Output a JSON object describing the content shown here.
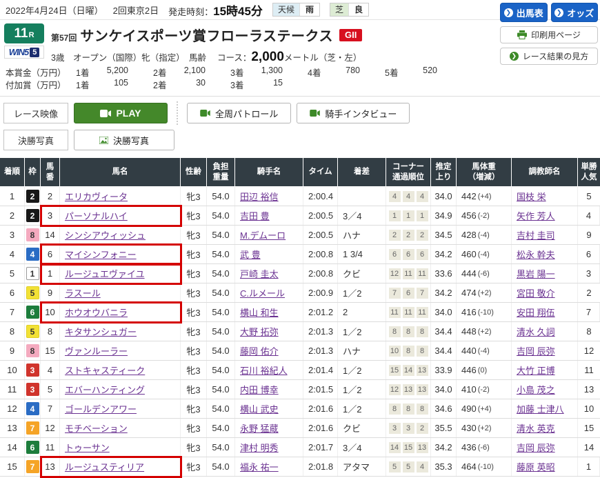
{
  "topbar": {
    "date": "2022年4月24日（日曜）",
    "meeting": "2回東京2日",
    "start_label": "発走時刻：",
    "start_time": "15時45分",
    "weather_label": "天候",
    "weather_value": "雨",
    "turf_label": "芝",
    "turf_value": "良"
  },
  "actions": {
    "entry_table": "出馬表",
    "odds": "オッズ",
    "print": "印刷用ページ",
    "how_to_read": "レース結果の見方"
  },
  "race": {
    "number": "11",
    "r_suffix": "R",
    "win5_text": "WIN5",
    "win5_num": "5",
    "edition": "第57回",
    "title": "サンケイスポーツ賞フローラステークス",
    "grade": "GII",
    "conditions": "3歳　オープン（国際）牝（指定）　馬齢",
    "course_label": "コース：",
    "distance": "2,000",
    "course_detail": "メートル（芝・左）"
  },
  "prize": {
    "main_label": "本賞金（万円）",
    "added_label": "付加賞（万円）",
    "main": [
      {
        "place": "1着",
        "amount": "5,200"
      },
      {
        "place": "2着",
        "amount": "2,100"
      },
      {
        "place": "3着",
        "amount": "1,300"
      },
      {
        "place": "4着",
        "amount": "780"
      },
      {
        "place": "5着",
        "amount": "520"
      }
    ],
    "added": [
      {
        "place": "1着",
        "amount": "105"
      },
      {
        "place": "2着",
        "amount": "30"
      },
      {
        "place": "3着",
        "amount": "15"
      }
    ]
  },
  "media": {
    "video_label": "レース映像",
    "play_label": "PLAY",
    "patrol_label": "全周パトロール",
    "interview_label": "騎手インタビュー",
    "photo_label": "決勝写真",
    "photo_button": "決勝写真"
  },
  "table": {
    "headers": [
      "着順",
      "枠",
      "馬\n番",
      "馬名",
      "性齢",
      "負担\n重量",
      "騎手名",
      "タイム",
      "着差",
      "コーナー\n通過順位",
      "推定\n上り",
      "馬体重\n（増減）",
      "調教師名",
      "単勝\n人気"
    ],
    "rows": [
      {
        "pos": "1",
        "frame": "2",
        "num": "2",
        "name": "エリカヴィータ",
        "sexage": "牝3",
        "weight": "54.0",
        "jockey": "田辺 裕信",
        "time": "2:00.4",
        "margin": "",
        "corners": [
          "4",
          "4",
          "4"
        ],
        "last3f": "34.0",
        "bodyweight": "442",
        "bwdiff": "(+4)",
        "trainer": "国枝 栄",
        "pop": "5",
        "highlight": false
      },
      {
        "pos": "2",
        "frame": "2",
        "num": "3",
        "name": "パーソナルハイ",
        "sexage": "牝3",
        "weight": "54.0",
        "jockey": "吉田 豊",
        "time": "2:00.5",
        "margin": "3／4",
        "corners": [
          "1",
          "1",
          "1"
        ],
        "last3f": "34.9",
        "bodyweight": "456",
        "bwdiff": "(-2)",
        "trainer": "矢作 芳人",
        "pop": "4",
        "highlight": true
      },
      {
        "pos": "3",
        "frame": "8",
        "num": "14",
        "name": "シンシアウィッシュ",
        "sexage": "牝3",
        "weight": "54.0",
        "jockey": "M.デムーロ",
        "time": "2:00.5",
        "margin": "ハナ",
        "corners": [
          "2",
          "2",
          "2"
        ],
        "last3f": "34.5",
        "bodyweight": "428",
        "bwdiff": "(-4)",
        "trainer": "吉村 圭司",
        "pop": "9",
        "highlight": false
      },
      {
        "pos": "4",
        "frame": "4",
        "num": "6",
        "name": "マイシンフォニー",
        "sexage": "牝3",
        "weight": "54.0",
        "jockey": "武 豊",
        "time": "2:00.8",
        "margin": "1 3/4",
        "corners": [
          "6",
          "6",
          "6"
        ],
        "last3f": "34.2",
        "bodyweight": "460",
        "bwdiff": "(-4)",
        "trainer": "松永 幹夫",
        "pop": "6",
        "highlight": true
      },
      {
        "pos": "5",
        "frame": "1",
        "num": "1",
        "name": "ルージュエヴァイユ",
        "sexage": "牝3",
        "weight": "54.0",
        "jockey": "戸崎 圭太",
        "time": "2:00.8",
        "margin": "クビ",
        "corners": [
          "12",
          "11",
          "11"
        ],
        "last3f": "33.6",
        "bodyweight": "444",
        "bwdiff": "(-6)",
        "trainer": "黒岩 陽一",
        "pop": "3",
        "highlight": true
      },
      {
        "pos": "6",
        "frame": "5",
        "num": "9",
        "name": "ラスール",
        "sexage": "牝3",
        "weight": "54.0",
        "jockey": "C.ルメール",
        "time": "2:00.9",
        "margin": "1／2",
        "corners": [
          "7",
          "6",
          "7"
        ],
        "last3f": "34.2",
        "bodyweight": "474",
        "bwdiff": "(+2)",
        "trainer": "宮田 敬介",
        "pop": "2",
        "highlight": false
      },
      {
        "pos": "7",
        "frame": "6",
        "num": "10",
        "name": "ホウオウバニラ",
        "sexage": "牝3",
        "weight": "54.0",
        "jockey": "横山 和生",
        "time": "2:01.2",
        "margin": "2",
        "corners": [
          "11",
          "11",
          "11"
        ],
        "last3f": "34.0",
        "bodyweight": "416",
        "bwdiff": "(-10)",
        "trainer": "安田 翔伍",
        "pop": "7",
        "highlight": true
      },
      {
        "pos": "8",
        "frame": "5",
        "num": "8",
        "name": "キタサンシュガー",
        "sexage": "牝3",
        "weight": "54.0",
        "jockey": "大野 拓弥",
        "time": "2:01.3",
        "margin": "1／2",
        "corners": [
          "8",
          "8",
          "8"
        ],
        "last3f": "34.4",
        "bodyweight": "448",
        "bwdiff": "(+2)",
        "trainer": "清水 久詞",
        "pop": "8",
        "highlight": false
      },
      {
        "pos": "9",
        "frame": "8",
        "num": "15",
        "name": "ヴァンルーラー",
        "sexage": "牝3",
        "weight": "54.0",
        "jockey": "藤岡 佑介",
        "time": "2:01.3",
        "margin": "ハナ",
        "corners": [
          "10",
          "8",
          "8"
        ],
        "last3f": "34.4",
        "bodyweight": "440",
        "bwdiff": "(-4)",
        "trainer": "吉岡 辰弥",
        "pop": "12",
        "highlight": false
      },
      {
        "pos": "10",
        "frame": "3",
        "num": "4",
        "name": "ストキャスティーク",
        "sexage": "牝3",
        "weight": "54.0",
        "jockey": "石川 裕紀人",
        "time": "2:01.4",
        "margin": "1／2",
        "corners": [
          "15",
          "14",
          "13"
        ],
        "last3f": "33.9",
        "bodyweight": "446",
        "bwdiff": "(0)",
        "trainer": "大竹 正博",
        "pop": "11",
        "highlight": false
      },
      {
        "pos": "11",
        "frame": "3",
        "num": "5",
        "name": "エバーハンティング",
        "sexage": "牝3",
        "weight": "54.0",
        "jockey": "内田 博幸",
        "time": "2:01.5",
        "margin": "1／2",
        "corners": [
          "12",
          "13",
          "13"
        ],
        "last3f": "34.0",
        "bodyweight": "410",
        "bwdiff": "(-2)",
        "trainer": "小島 茂之",
        "pop": "13",
        "highlight": false
      },
      {
        "pos": "12",
        "frame": "4",
        "num": "7",
        "name": "ゴールデンアワー",
        "sexage": "牝3",
        "weight": "54.0",
        "jockey": "横山 武史",
        "time": "2:01.6",
        "margin": "1／2",
        "corners": [
          "8",
          "8",
          "8"
        ],
        "last3f": "34.6",
        "bodyweight": "490",
        "bwdiff": "(+4)",
        "trainer": "加藤 士津八",
        "pop": "10",
        "highlight": false
      },
      {
        "pos": "13",
        "frame": "7",
        "num": "12",
        "name": "モチベーション",
        "sexage": "牝3",
        "weight": "54.0",
        "jockey": "永野 猛蔵",
        "time": "2:01.6",
        "margin": "クビ",
        "corners": [
          "3",
          "3",
          "2"
        ],
        "last3f": "35.5",
        "bodyweight": "430",
        "bwdiff": "(+2)",
        "trainer": "清水 英克",
        "pop": "15",
        "highlight": false
      },
      {
        "pos": "14",
        "frame": "6",
        "num": "11",
        "name": "トゥーサン",
        "sexage": "牝3",
        "weight": "54.0",
        "jockey": "津村 明秀",
        "time": "2:01.7",
        "margin": "3／4",
        "corners": [
          "14",
          "15",
          "13"
        ],
        "last3f": "34.2",
        "bodyweight": "436",
        "bwdiff": "(-6)",
        "trainer": "吉岡 辰弥",
        "pop": "14",
        "highlight": false
      },
      {
        "pos": "15",
        "frame": "7",
        "num": "13",
        "name": "ルージュスティリア",
        "sexage": "牝3",
        "weight": "54.0",
        "jockey": "福永 祐一",
        "time": "2:01.8",
        "margin": "アタマ",
        "corners": [
          "5",
          "5",
          "4"
        ],
        "last3f": "35.3",
        "bodyweight": "464",
        "bwdiff": "(-10)",
        "trainer": "藤原 英昭",
        "pop": "1",
        "highlight": true
      }
    ]
  },
  "colors": {
    "accent_blue": "#1a63c6",
    "play_green": "#44882a",
    "badge_green": "#157f5e",
    "grade_red": "#d7101f",
    "highlight_red": "#d40000",
    "header_dark": "#323d44",
    "link_purple": "#6a3191",
    "frames": {
      "1": {
        "bg": "#ffffff",
        "fg": "#333333",
        "border": "#999999"
      },
      "2": {
        "bg": "#181818",
        "fg": "#ffffff",
        "border": "#181818"
      },
      "3": {
        "bg": "#d0342c",
        "fg": "#ffffff",
        "border": "#d0342c"
      },
      "4": {
        "bg": "#2a6cc4",
        "fg": "#ffffff",
        "border": "#2a6cc4"
      },
      "5": {
        "bg": "#f2e135",
        "fg": "#333333",
        "border": "#e0cf25"
      },
      "6": {
        "bg": "#1d7d3c",
        "fg": "#ffffff",
        "border": "#1d7d3c"
      },
      "7": {
        "bg": "#f5a427",
        "fg": "#ffffff",
        "border": "#f5a427"
      },
      "8": {
        "bg": "#f4aabf",
        "fg": "#333333",
        "border": "#f4aabf"
      }
    }
  }
}
